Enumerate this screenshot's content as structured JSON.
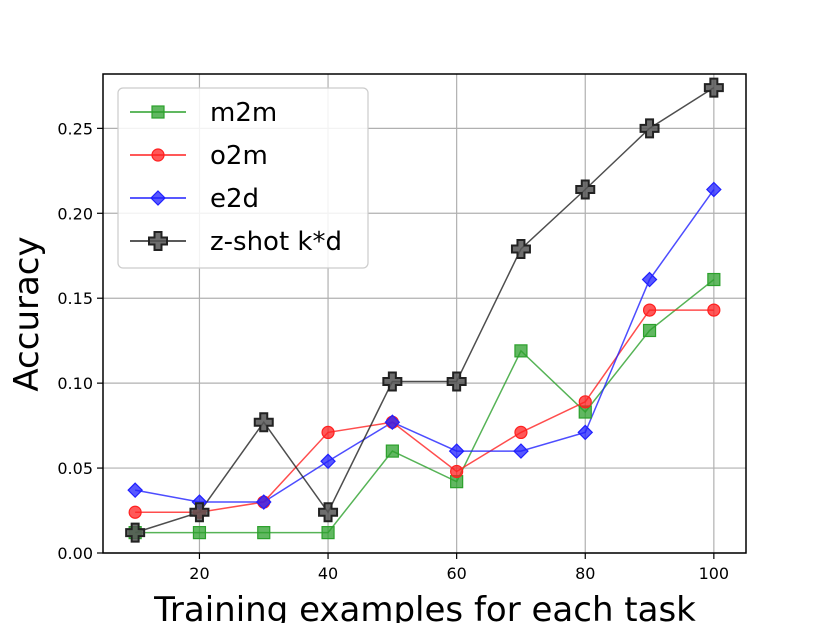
{
  "chart_data": {
    "type": "line",
    "xlabel": "Training examples for each task",
    "ylabel": "Accuracy",
    "xlim": [
      5,
      105
    ],
    "ylim": [
      0.0,
      0.282
    ],
    "xticks": [
      20,
      40,
      60,
      80,
      100
    ],
    "yticks": [
      0.0,
      0.05,
      0.1,
      0.15,
      0.2,
      0.25
    ],
    "xtick_labels": [
      "20",
      "40",
      "60",
      "80",
      "100"
    ],
    "ytick_labels": [
      "0.00",
      "0.05",
      "0.10",
      "0.15",
      "0.20",
      "0.25"
    ],
    "grid": true,
    "legend_position": "top-left",
    "x": [
      10,
      20,
      30,
      40,
      50,
      60,
      70,
      80,
      90,
      100
    ],
    "series": [
      {
        "name": "m2m",
        "color": "#2ca02c",
        "marker": "square",
        "values": [
          0.012,
          0.012,
          0.012,
          0.012,
          0.06,
          0.042,
          0.119,
          0.083,
          0.131,
          0.161
        ]
      },
      {
        "name": "o2m",
        "color": "#ff2020",
        "marker": "circle",
        "values": [
          0.024,
          0.024,
          0.03,
          0.071,
          0.077,
          0.048,
          0.071,
          0.089,
          0.143,
          0.143
        ]
      },
      {
        "name": "e2d",
        "color": "#2020ff",
        "marker": "diamond",
        "values": [
          0.037,
          0.03,
          0.03,
          0.054,
          0.077,
          0.06,
          0.06,
          0.071,
          0.161,
          0.214
        ]
      },
      {
        "name": "z-shot k*d",
        "color": "#222222",
        "marker": "plus",
        "values": [
          0.012,
          0.024,
          0.077,
          0.024,
          0.101,
          0.101,
          0.179,
          0.214,
          0.25,
          0.274
        ]
      }
    ]
  }
}
